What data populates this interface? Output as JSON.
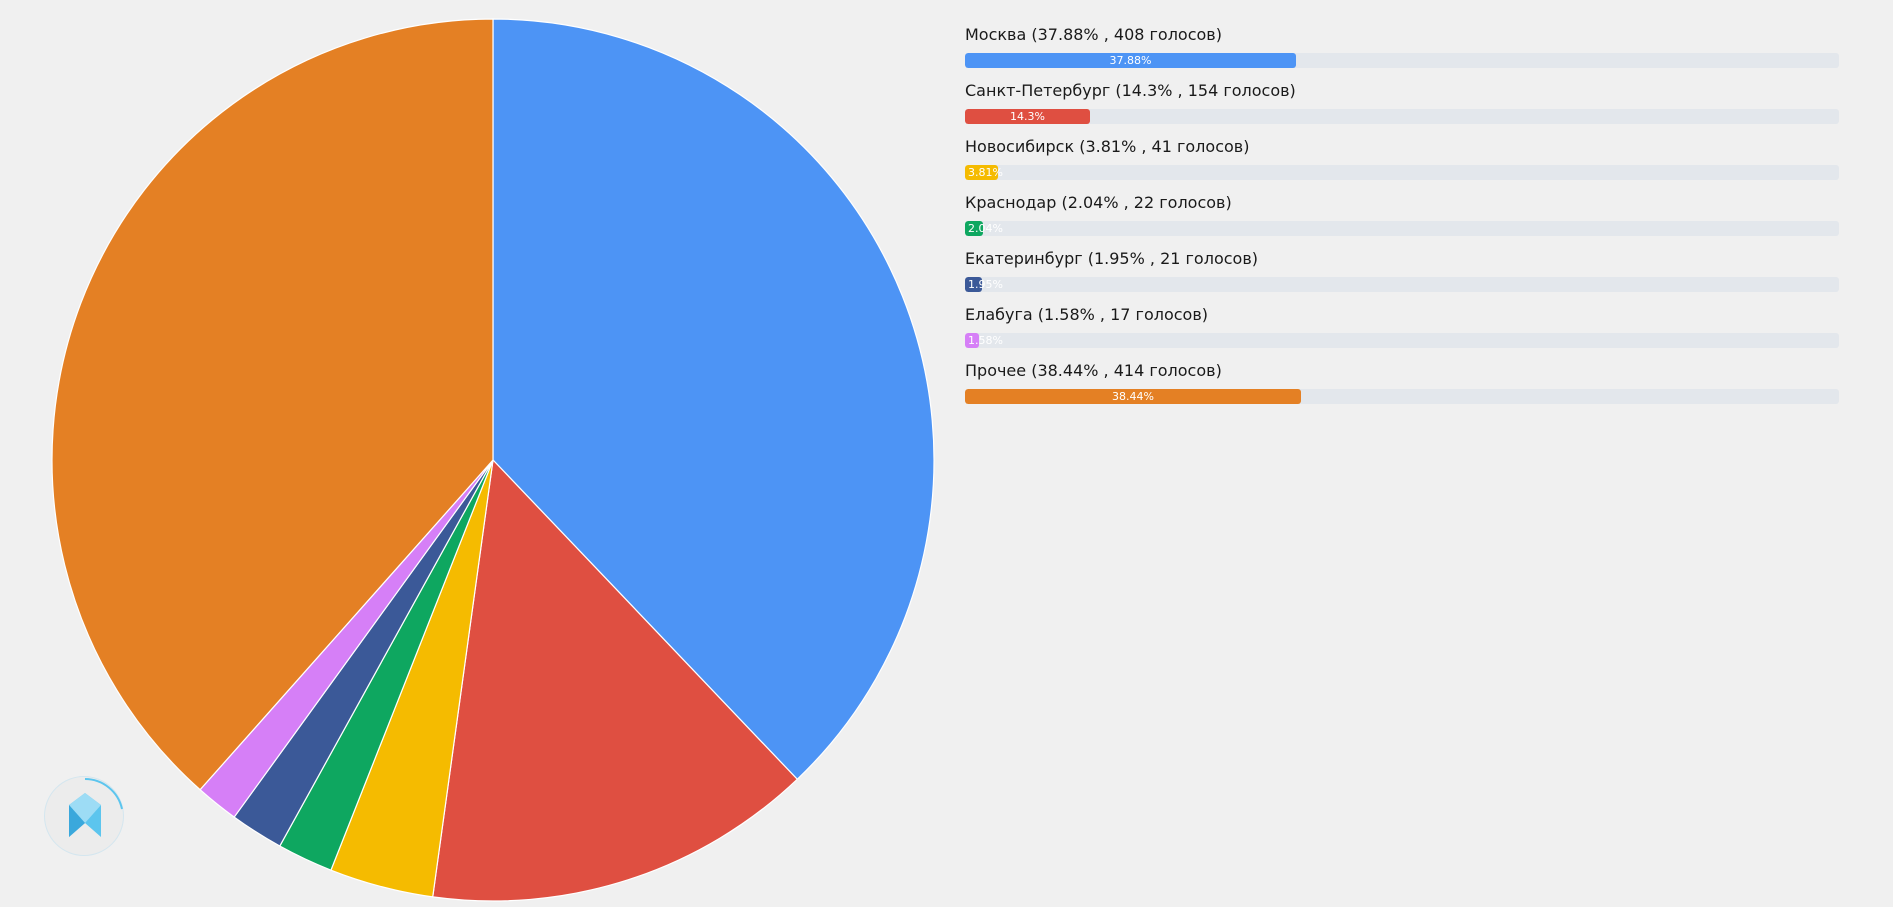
{
  "chart_data": {
    "type": "pie",
    "slices": [
      {
        "label": "Москва (37.88% , 408 голосов)",
        "value": 408,
        "pct": 37.88,
        "pct_label": "37.88%",
        "color": "#4d94f5"
      },
      {
        "label": "Санкт-Петербург (14.3% , 154 голосов)",
        "value": 154,
        "pct": 14.3,
        "pct_label": "14.3%",
        "color": "#df4f41"
      },
      {
        "label": "Новосибирск (3.81% , 41 голосов)",
        "value": 41,
        "pct": 3.81,
        "pct_label": "3.81%",
        "color": "#f5bb00"
      },
      {
        "label": "Краснодар (2.04% , 22 голосов)",
        "value": 22,
        "pct": 2.04,
        "pct_label": "2.04%",
        "color": "#0ea760"
      },
      {
        "label": "Екатеринбург (1.95% , 21 голосов)",
        "value": 21,
        "pct": 1.95,
        "pct_label": "1.95%",
        "color": "#3b5998"
      },
      {
        "label": "Елабуга (1.58% , 17 голосов)",
        "value": 17,
        "pct": 1.58,
        "pct_label": "1.58%",
        "color": "#d67ff7"
      },
      {
        "label": "Прочее (38.44% , 414 голосов)",
        "value": 414,
        "pct": 38.44,
        "pct_label": "38.44%",
        "color": "#e48024"
      }
    ],
    "legend_position": "right"
  },
  "logo": {
    "icon": "diamond-logo-icon",
    "color": "#5cc5ee"
  }
}
